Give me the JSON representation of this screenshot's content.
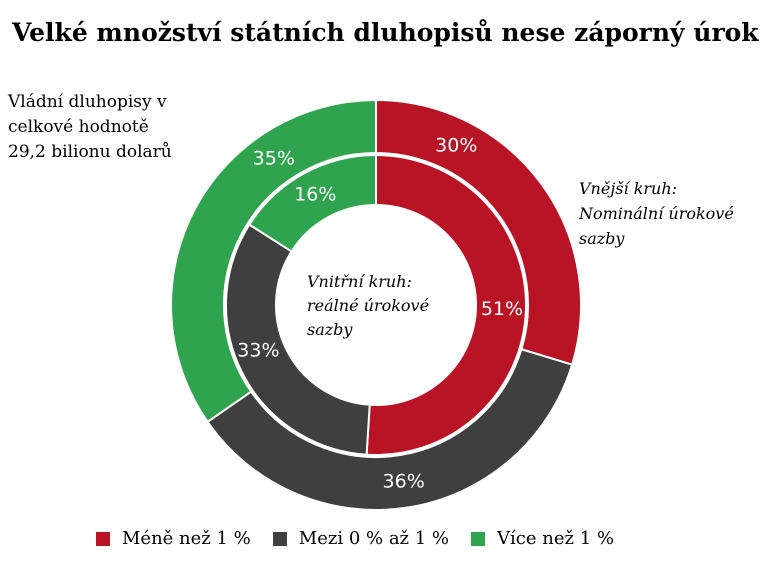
{
  "chart_data": {
    "type": "pie",
    "variant": "nested-donut",
    "title": "Velké množství státních dluhopisů nese záporný úrok",
    "note": [
      "Vládní dluhopisy v",
      "celkové hodnotě",
      "29,2 bilionu dolarů"
    ],
    "categories": [
      "Méně než 1 %",
      "Mezi 0 % až 1 %",
      "Více než 1 %"
    ],
    "colors": [
      "#b81425",
      "#3f3f3f",
      "#2fa34d"
    ],
    "series": [
      {
        "ring": "outer",
        "label": [
          "Vnější kruh:",
          "Nominální úrokové",
          "sazby"
        ],
        "values": [
          30,
          36,
          35
        ],
        "labels": [
          "30%",
          "36%",
          "35%"
        ]
      },
      {
        "ring": "inner",
        "label": [
          "Vnitřní kruh:",
          "reálné úrokové",
          "sazby"
        ],
        "values": [
          51,
          33,
          16
        ],
        "labels": [
          "51%",
          "33%",
          "16%"
        ]
      }
    ],
    "legend_position": "bottom"
  }
}
